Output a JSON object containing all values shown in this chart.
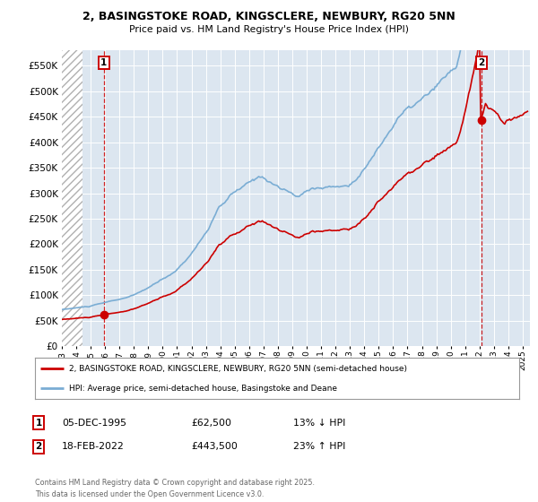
{
  "title_line1": "2, BASINGSTOKE ROAD, KINGSCLERE, NEWBURY, RG20 5NN",
  "title_line2": "Price paid vs. HM Land Registry's House Price Index (HPI)",
  "legend_label1": "2, BASINGSTOKE ROAD, KINGSCLERE, NEWBURY, RG20 5NN (semi-detached house)",
  "legend_label2": "HPI: Average price, semi-detached house, Basingstoke and Deane",
  "ann1_num": "1",
  "ann1_date": "05-DEC-1995",
  "ann1_price": "£62,500",
  "ann1_pct": "13% ↓ HPI",
  "ann2_num": "2",
  "ann2_date": "18-FEB-2022",
  "ann2_price": "£443,500",
  "ann2_pct": "23% ↑ HPI",
  "footnote": "Contains HM Land Registry data © Crown copyright and database right 2025.\nThis data is licensed under the Open Government Licence v3.0.",
  "ylim_min": 0,
  "ylim_max": 580000,
  "yticks": [
    0,
    50000,
    100000,
    150000,
    200000,
    250000,
    300000,
    350000,
    400000,
    450000,
    500000,
    550000
  ],
  "color_price": "#cc0000",
  "color_hpi": "#7aadd4",
  "background_color": "#dce6f0",
  "sale1_year": 1995.917,
  "sale1_price": 62500,
  "sale2_year": 2022.125,
  "sale2_price": 443500,
  "xmin": 1993.0,
  "xmax": 2025.5
}
